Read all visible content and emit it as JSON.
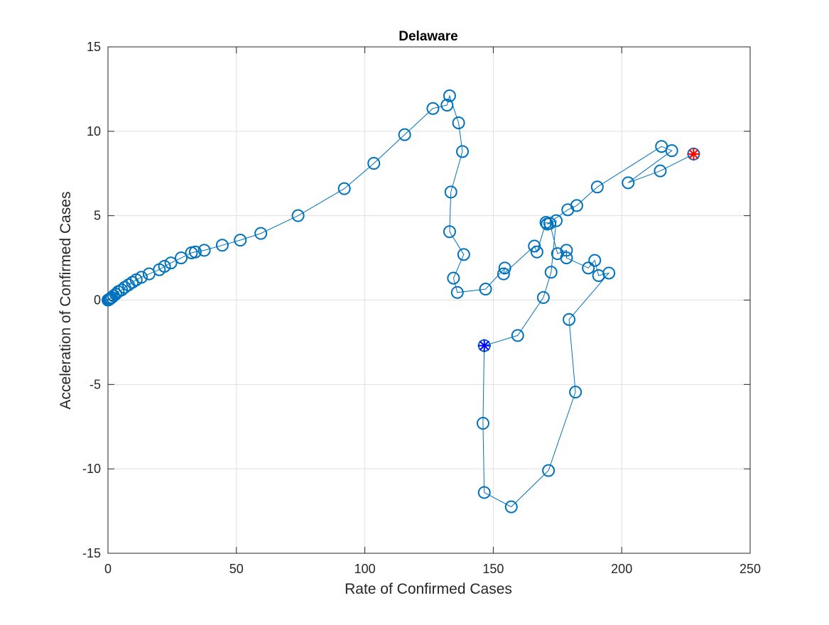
{
  "chart_data": {
    "type": "scatter",
    "title": "Delaware",
    "xlabel": "Rate of Confirmed Cases",
    "ylabel": "Acceleration of Confirmed Cases",
    "xlim": [
      0,
      250
    ],
    "ylim": [
      -15,
      15
    ],
    "xticks": [
      0,
      50,
      100,
      150,
      200,
      250
    ],
    "yticks": [
      -15,
      -10,
      -5,
      0,
      5,
      10,
      15
    ],
    "xtick_labels": [
      "0",
      "50",
      "100",
      "150",
      "200",
      "250"
    ],
    "ytick_labels": [
      "-15",
      "-10",
      "-5",
      "0",
      "5",
      "10",
      "15"
    ],
    "grid": true,
    "colors": {
      "series": "#0072BD",
      "start_marker": "#0000FF",
      "end_marker": "#FF0000"
    },
    "series": [
      {
        "marker": "circle",
        "line": "solid",
        "x": [
          0.0,
          0.3,
          0.6,
          1.0,
          1.5,
          2.2,
          3.0,
          4.0,
          5.3,
          6.5,
          8.0,
          9.5,
          11.0,
          13.0,
          16.0,
          20.0,
          22.0,
          24.5,
          28.5,
          32.5,
          34.0,
          37.5,
          44.5,
          51.5,
          59.5,
          74.0,
          92.0,
          103.5,
          115.5,
          126.5,
          132.0,
          133.0,
          136.5,
          138.0,
          133.5,
          133.0,
          138.5,
          134.5,
          136.0,
          147.0,
          154.5,
          154.0,
          166.0,
          167.0,
          170.5,
          172.0,
          175.0,
          178.5,
          178.5,
          187.0,
          189.5,
          191.0,
          195.0,
          179.5,
          182.0,
          171.5,
          157.0,
          146.5,
          146.0,
          146.5,
          159.5,
          169.5,
          172.5,
          174.5,
          171.0,
          179.0,
          182.5,
          190.5,
          215.5,
          219.5,
          202.5,
          215.0,
          228.0
        ],
        "y": [
          0.0,
          0.02,
          0.05,
          0.1,
          0.15,
          0.25,
          0.35,
          0.5,
          0.6,
          0.75,
          0.9,
          1.05,
          1.2,
          1.35,
          1.55,
          1.8,
          2.0,
          2.2,
          2.5,
          2.8,
          2.85,
          2.95,
          3.25,
          3.55,
          3.95,
          5.0,
          6.6,
          8.1,
          9.8,
          11.35,
          11.55,
          12.1,
          10.5,
          8.8,
          6.4,
          4.05,
          2.7,
          1.3,
          0.45,
          0.65,
          1.9,
          1.55,
          3.2,
          2.85,
          4.6,
          4.55,
          2.75,
          2.95,
          2.5,
          1.9,
          2.35,
          1.45,
          1.6,
          -1.15,
          -5.45,
          -10.1,
          -12.25,
          -11.4,
          -7.3,
          -2.7,
          -2.1,
          0.15,
          1.65,
          4.7,
          4.5,
          5.35,
          5.6,
          6.7,
          9.1,
          8.85,
          6.95,
          7.65,
          8.65
        ]
      }
    ],
    "start_point": {
      "marker": "asterisk",
      "x": 146.5,
      "y": -2.7
    },
    "end_point": {
      "marker": "asterisk",
      "x": 228.0,
      "y": 8.65
    }
  }
}
